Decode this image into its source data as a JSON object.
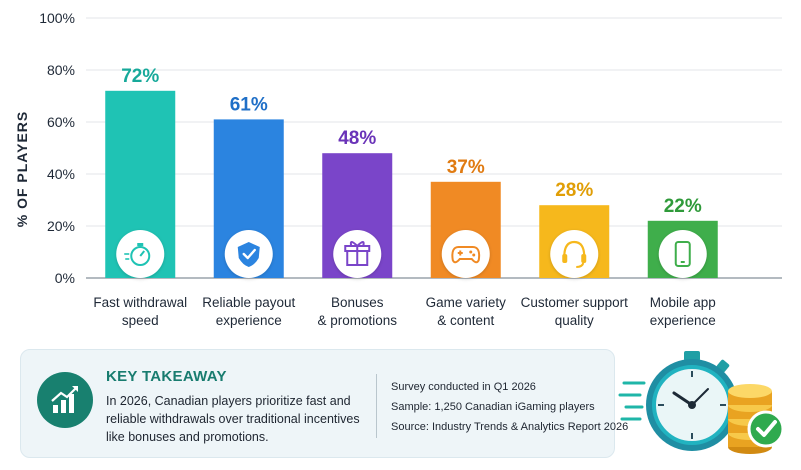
{
  "chart_data": {
    "type": "bar",
    "ylabel": "% OF PLAYERS",
    "ylim": [
      0,
      100
    ],
    "yticks": [
      "0%",
      "20%",
      "40%",
      "60%",
      "80%",
      "100%"
    ],
    "grid": true,
    "categories": [
      {
        "line1": "Fast withdrawal",
        "line2": "speed"
      },
      {
        "line1": "Reliable payout",
        "line2": "experience"
      },
      {
        "line1": "Bonuses",
        "line2": "& promotions"
      },
      {
        "line1": "Game variety",
        "line2": "& content"
      },
      {
        "line1": "Customer support",
        "line2": "quality"
      },
      {
        "line1": "Mobile app",
        "line2": "experience"
      }
    ],
    "values": [
      72,
      61,
      48,
      37,
      28,
      22
    ],
    "value_labels": [
      "72%",
      "61%",
      "48%",
      "37%",
      "28%",
      "22%"
    ],
    "colors": [
      "#1fc3b4",
      "#2b84e0",
      "#7a45c9",
      "#f08a24",
      "#f6b81c",
      "#3fae4b"
    ],
    "label_colors": [
      "#17a99a",
      "#1f6fc7",
      "#6a33b8",
      "#e07b12",
      "#e09e06",
      "#2f9a3a"
    ],
    "icons": [
      "stopwatch-icon",
      "shield-check-icon",
      "gift-icon",
      "gamepad-icon",
      "headset-icon",
      "smartphone-icon"
    ]
  },
  "takeaway": {
    "title": "KEY TAKEAWAY",
    "text": "In 2026, Canadian players prioritize fast and reliable withdrawals over traditional incentives like bonuses and promotions.",
    "icon": "chart-growth-icon"
  },
  "source": {
    "line1": "Survey conducted in Q1 2026",
    "line2": "Sample: 1,250 Canadian iGaming players",
    "line3": "Source: Industry Trends & Analytics Report 2026"
  },
  "illustration": {
    "icon": "stopwatch-coins-check-icon"
  }
}
